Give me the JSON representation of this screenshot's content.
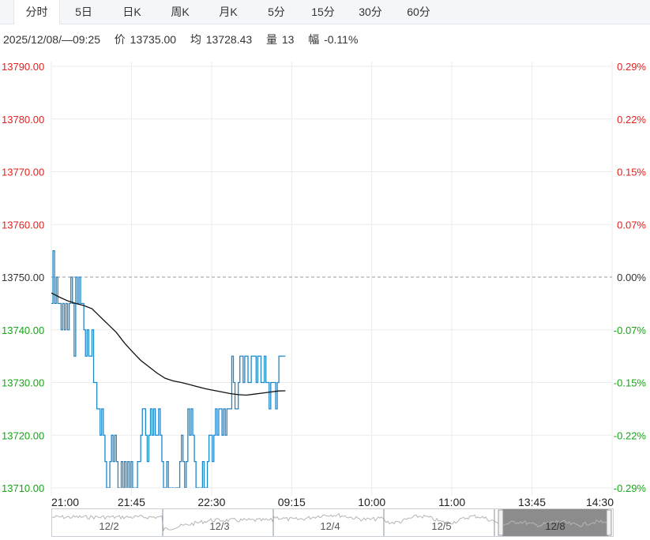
{
  "tabs": [
    {
      "label": "分时",
      "active": true
    },
    {
      "label": "5日",
      "active": false
    },
    {
      "label": "日K",
      "active": false
    },
    {
      "label": "周K",
      "active": false
    },
    {
      "label": "月K",
      "active": false
    },
    {
      "label": "5分",
      "active": false
    },
    {
      "label": "15分",
      "active": false
    },
    {
      "label": "30分",
      "active": false
    },
    {
      "label": "60分",
      "active": false
    }
  ],
  "info": {
    "datetime": "2025/12/08/—09:25",
    "price_label": "价",
    "price": "13735.00",
    "avg_label": "均",
    "avg": "13728.43",
    "volume_label": "量",
    "volume": "13",
    "change_label": "幅",
    "change": "-0.11%"
  },
  "colors": {
    "up": "#e02020",
    "down": "#1aa31a",
    "price_line": "#1f86c8",
    "avg_line": "#111111",
    "grid": "#ebebeb",
    "neutral": "#333333"
  },
  "chart_data": {
    "type": "line",
    "title": "",
    "prev_close": 13750.0,
    "y_ticks": [
      13790.0,
      13780.0,
      13770.0,
      13760.0,
      13750.0,
      13740.0,
      13730.0,
      13720.0,
      13710.0
    ],
    "y_tick_labels": [
      "13790.00",
      "13780.00",
      "13770.00",
      "13760.00",
      "13750.00",
      "13740.00",
      "13730.00",
      "13720.00",
      "13710.00"
    ],
    "pct_tick_labels": [
      "0.29%",
      "0.22%",
      "0.15%",
      "0.07%",
      "0.00%",
      "-0.07%",
      "-0.15%",
      "-0.22%",
      "-0.29%"
    ],
    "x_tick_labels": [
      "21:00",
      "21:45",
      "22:30",
      "09:15",
      "10:00",
      "11:00",
      "13:45",
      "14:30"
    ],
    "ylim": [
      13710,
      13790
    ],
    "grid": true,
    "session_minutes": 345,
    "series": [
      {
        "name": "价",
        "x": [
          0,
          1,
          2,
          3,
          4,
          5,
          6,
          7,
          8,
          9,
          10,
          11,
          12,
          13,
          14,
          15,
          16,
          17,
          18,
          19,
          20,
          21,
          22,
          23,
          24,
          25,
          26,
          27,
          28,
          29,
          30,
          31,
          32,
          33,
          34,
          35,
          36,
          37,
          38,
          39,
          40,
          41,
          42,
          43,
          44,
          45,
          46,
          47,
          48,
          49,
          50,
          51,
          52,
          53,
          54,
          55,
          56,
          57,
          58,
          59,
          60,
          61,
          62,
          63,
          64,
          65,
          66,
          67,
          68,
          69,
          70,
          71,
          72,
          73,
          74,
          75,
          76,
          77,
          78,
          79,
          80,
          81,
          82,
          83,
          84,
          85,
          86,
          87,
          88,
          89,
          90,
          91,
          92,
          93,
          94,
          95,
          96,
          97,
          98,
          99,
          100,
          101,
          102,
          103,
          104,
          105,
          106,
          107,
          108,
          109,
          110,
          111,
          112,
          113,
          114,
          115,
          116,
          117,
          118,
          119,
          120,
          121,
          122,
          123,
          124,
          125,
          126,
          127,
          128,
          129,
          130,
          131,
          132,
          133,
          134,
          135,
          136,
          137,
          138,
          139,
          140,
          141,
          142,
          143,
          144
        ],
        "values": [
          13745,
          13755,
          13745,
          13750,
          13745,
          13745,
          13740,
          13745,
          13740,
          13745,
          13740,
          13745,
          13750,
          13745,
          13735,
          13750,
          13745,
          13750,
          13745,
          13745,
          13740,
          13735,
          13740,
          13735,
          13735,
          13740,
          13730,
          13730,
          13725,
          13725,
          13720,
          13725,
          13720,
          13715,
          13710,
          13710,
          13715,
          13720,
          13715,
          13720,
          13715,
          13710,
          13705,
          13715,
          13710,
          13715,
          13705,
          13715,
          13710,
          13715,
          13710,
          13705,
          13710,
          13715,
          13715,
          13720,
          13725,
          13725,
          13720,
          13715,
          13720,
          13725,
          13720,
          13725,
          13720,
          13720,
          13725,
          13720,
          13715,
          13710,
          13710,
          13715,
          13710,
          13705,
          13710,
          13705,
          13710,
          13710,
          13710,
          13715,
          13720,
          13715,
          13710,
          13715,
          13725,
          13720,
          13725,
          13720,
          13715,
          13710,
          13710,
          13705,
          13710,
          13715,
          13710,
          13710,
          13715,
          13720,
          13720,
          13715,
          13720,
          13725,
          13720,
          13725,
          13725,
          13720,
          13725,
          13720,
          13725,
          13725,
          13725,
          13735,
          13730,
          13725,
          13725,
          13730,
          13735,
          13735,
          13730,
          13735,
          13735,
          13730,
          13730,
          13735,
          13735,
          13735,
          13730,
          13735,
          13735,
          13730,
          13730,
          13735,
          13730,
          13730,
          13725,
          13730,
          13730,
          13730,
          13725,
          13730,
          13735,
          13735,
          13735,
          13735,
          13735
        ]
      },
      {
        "name": "均",
        "x": [
          0,
          5,
          10,
          15,
          20,
          25,
          30,
          35,
          40,
          45,
          50,
          55,
          60,
          65,
          70,
          75,
          80,
          85,
          90,
          95,
          100,
          105,
          110,
          115,
          120,
          125,
          130,
          135,
          140,
          144
        ],
        "values": [
          13747.0,
          13746.2,
          13745.5,
          13745.0,
          13744.6,
          13744.0,
          13742.5,
          13741.0,
          13739.5,
          13737.5,
          13735.8,
          13734.2,
          13733.0,
          13731.8,
          13730.8,
          13730.3,
          13730.0,
          13729.6,
          13729.2,
          13728.8,
          13728.5,
          13728.2,
          13727.9,
          13727.7,
          13727.6,
          13727.8,
          13728.0,
          13728.2,
          13728.4,
          13728.43
        ]
      }
    ]
  },
  "navigator": {
    "labels": [
      "12/2",
      "12/3",
      "12/4",
      "12/5",
      "12/8"
    ]
  }
}
